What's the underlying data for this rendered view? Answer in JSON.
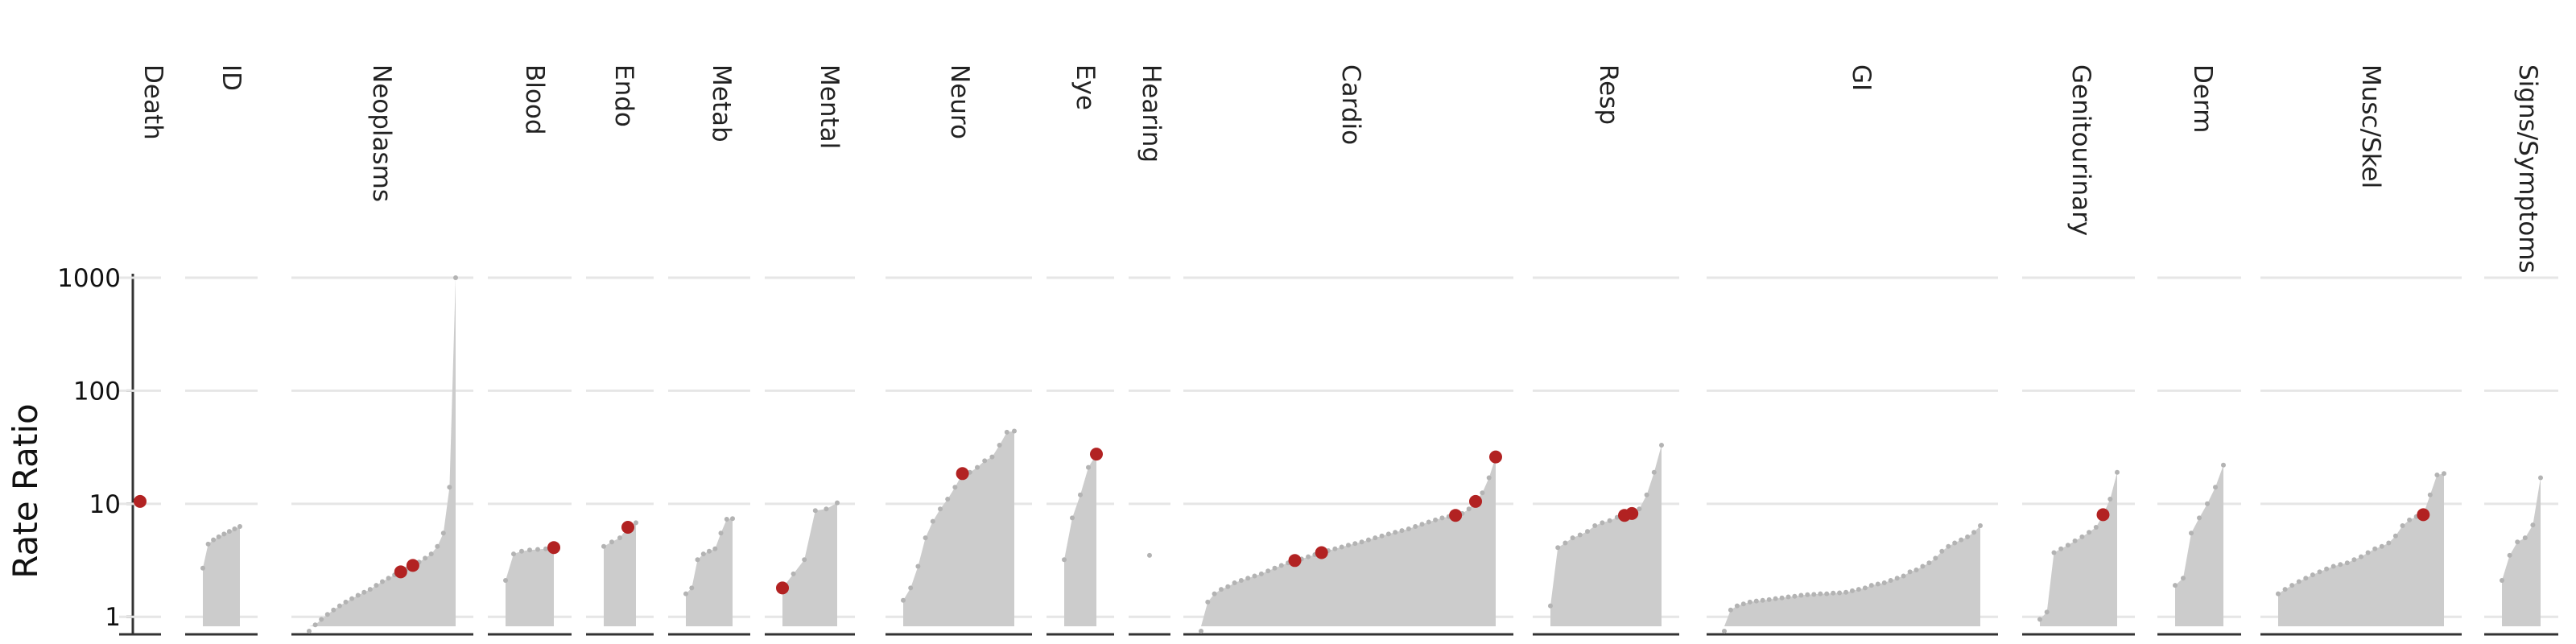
{
  "chart_data": {
    "type": "area",
    "ylabel": "Rate Ratio",
    "yscale": "log",
    "ylim": [
      0.7,
      1000
    ],
    "yticks": [
      "1",
      "10",
      "100",
      "1000"
    ],
    "grid": true,
    "colors": {
      "area": "#cccccc",
      "point": "#b3b3b3",
      "highlight": "#b22222",
      "grid": "#e6e6e6",
      "axis": "#333333"
    },
    "panels": [
      {
        "name": "Death",
        "values": [
          10.5
        ],
        "highlights": [
          0
        ]
      },
      {
        "name": "ID",
        "values": [
          2.7,
          4.4,
          4.8,
          5.1,
          5.4,
          5.7,
          6.0,
          6.3
        ],
        "highlights": []
      },
      {
        "name": "Neoplasms",
        "values": [
          0.7,
          0.85,
          0.95,
          1.05,
          1.15,
          1.25,
          1.35,
          1.45,
          1.55,
          1.65,
          1.75,
          1.9,
          2.05,
          2.2,
          2.35,
          2.5,
          2.65,
          2.85,
          3.05,
          3.3,
          3.6,
          4.2,
          5.5,
          14,
          1000
        ],
        "highlights": [
          15,
          17
        ]
      },
      {
        "name": "Blood",
        "values": [
          2.1,
          3.6,
          3.8,
          3.9,
          3.95,
          4.0,
          4.1
        ],
        "highlights": [
          6
        ]
      },
      {
        "name": "Endo",
        "values": [
          4.2,
          4.6,
          5.0,
          6.2,
          6.8
        ],
        "highlights": [
          3
        ]
      },
      {
        "name": "Metab",
        "values": [
          1.6,
          1.8,
          3.2,
          3.6,
          3.8,
          4.0,
          5.5,
          7.3,
          7.4
        ],
        "highlights": []
      },
      {
        "name": "Mental",
        "values": [
          1.8,
          2.4,
          3.2,
          8.7,
          9.0,
          10.2
        ],
        "highlights": [
          0
        ]
      },
      {
        "name": "Neuro",
        "values": [
          1.4,
          1.8,
          2.8,
          5.0,
          7.0,
          9.0,
          11.0,
          14.0,
          18.5,
          19.0,
          21.0,
          24.0,
          26.0,
          33.0,
          43.0,
          44.0
        ],
        "highlights": [
          8
        ]
      },
      {
        "name": "Eye",
        "values": [
          3.2,
          7.5,
          12.0,
          21.0,
          27.5
        ],
        "highlights": [
          4
        ]
      },
      {
        "name": "Hearing",
        "values": [
          3.5
        ],
        "highlights": []
      },
      {
        "name": "Cardio",
        "values": [
          0.7,
          1.35,
          1.6,
          1.75,
          1.85,
          2.0,
          2.1,
          2.2,
          2.3,
          2.4,
          2.55,
          2.7,
          2.85,
          3.0,
          3.15,
          3.25,
          3.4,
          3.55,
          3.7,
          3.85,
          4.0,
          4.15,
          4.3,
          4.45,
          4.6,
          4.8,
          5.0,
          5.2,
          5.4,
          5.6,
          5.8,
          6.0,
          6.3,
          6.6,
          6.9,
          7.2,
          7.5,
          7.7,
          7.9,
          8.2,
          9.0,
          10.5,
          12.5,
          17.0,
          26.0
        ],
        "highlights": [
          14,
          18,
          38,
          41,
          44
        ]
      },
      {
        "name": "Resp",
        "values": [
          1.25,
          4.1,
          4.5,
          5.0,
          5.3,
          5.7,
          6.4,
          6.8,
          7.1,
          7.6,
          7.9,
          8.2,
          9.0,
          12.0,
          19.0,
          33.0
        ],
        "highlights": [
          10,
          11
        ]
      },
      {
        "name": "GI",
        "values": [
          0.7,
          1.15,
          1.25,
          1.3,
          1.35,
          1.38,
          1.4,
          1.42,
          1.45,
          1.47,
          1.5,
          1.52,
          1.55,
          1.57,
          1.58,
          1.6,
          1.6,
          1.62,
          1.63,
          1.65,
          1.7,
          1.75,
          1.8,
          1.9,
          1.95,
          2.0,
          2.1,
          2.2,
          2.3,
          2.5,
          2.6,
          2.8,
          3.0,
          3.3,
          3.8,
          4.2,
          4.5,
          4.8,
          5.1,
          5.6,
          6.4
        ],
        "highlights": []
      },
      {
        "name": "Genitourinary",
        "values": [
          0.95,
          1.1,
          3.7,
          4.0,
          4.3,
          4.7,
          5.1,
          5.6,
          6.2,
          8.0,
          11.0,
          19.0
        ],
        "highlights": [
          9
        ]
      },
      {
        "name": "Derm",
        "values": [
          1.9,
          2.2,
          5.5,
          7.5,
          10.0,
          14.0,
          22.0
        ],
        "highlights": []
      },
      {
        "name": "Musc/Skel",
        "values": [
          1.6,
          1.75,
          1.9,
          2.05,
          2.2,
          2.35,
          2.5,
          2.65,
          2.8,
          2.9,
          3.0,
          3.2,
          3.4,
          3.7,
          4.0,
          4.2,
          4.5,
          5.2,
          6.4,
          7.2,
          7.7,
          8.0,
          12.0,
          18.0,
          18.5
        ],
        "highlights": [
          21
        ]
      },
      {
        "name": "Signs/Symptoms",
        "values": [
          2.1,
          3.5,
          4.6,
          5.0,
          6.5,
          17.0
        ],
        "highlights": []
      }
    ]
  }
}
